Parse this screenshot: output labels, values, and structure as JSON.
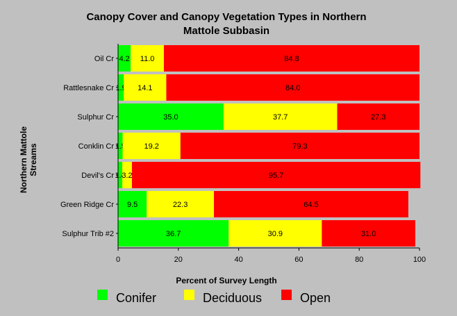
{
  "chart_data": {
    "type": "bar",
    "orientation": "horizontal",
    "stacked": true,
    "title": "Canopy Cover and Canopy Vegetation Types in Northern Mattole Subbasin",
    "title_lines": [
      "Canopy Cover and Canopy Vegetation Types in Northern",
      "Mattole Subbasin"
    ],
    "xlabel": "Percent of Survey Length",
    "ylabel": "Northern Mattole Streams",
    "ylabel_lines": [
      "Northern Mattole",
      "Streams"
    ],
    "xlim": [
      0,
      100
    ],
    "xticks": [
      0,
      20,
      40,
      60,
      80,
      100
    ],
    "grid": false,
    "legend_position": "bottom",
    "categories": [
      "Oil Cr",
      "Rattlesnake Cr",
      "Sulphur Cr",
      "Conklin Cr",
      "Devil's Cr",
      "Green Ridge Cr",
      "Sulphur Trib #2"
    ],
    "series": [
      {
        "name": "Conifer",
        "color": "#00ff00",
        "values": [
          4.2,
          1.9,
          35.0,
          1.5,
          1.4,
          9.5,
          36.7
        ],
        "labels": [
          "4.2",
          "1.9",
          "35.0",
          "1.5",
          "1.4",
          "9.5",
          "36.7"
        ]
      },
      {
        "name": "Deciduous",
        "color": "#ffff00",
        "values": [
          11.0,
          14.1,
          37.7,
          19.2,
          3.2,
          22.3,
          30.9
        ],
        "labels": [
          "11.0",
          "14.1",
          "37.7",
          "19.2",
          "3.2",
          "22.3",
          "30.9"
        ]
      },
      {
        "name": "Open",
        "color": "#ff0000",
        "values": [
          84.8,
          84.0,
          27.3,
          79.3,
          95.7,
          64.5,
          31.0
        ],
        "labels": [
          "84.8",
          "84.0",
          "27.3",
          "79.3",
          "95.7",
          "64.5",
          "31.0"
        ]
      }
    ]
  }
}
